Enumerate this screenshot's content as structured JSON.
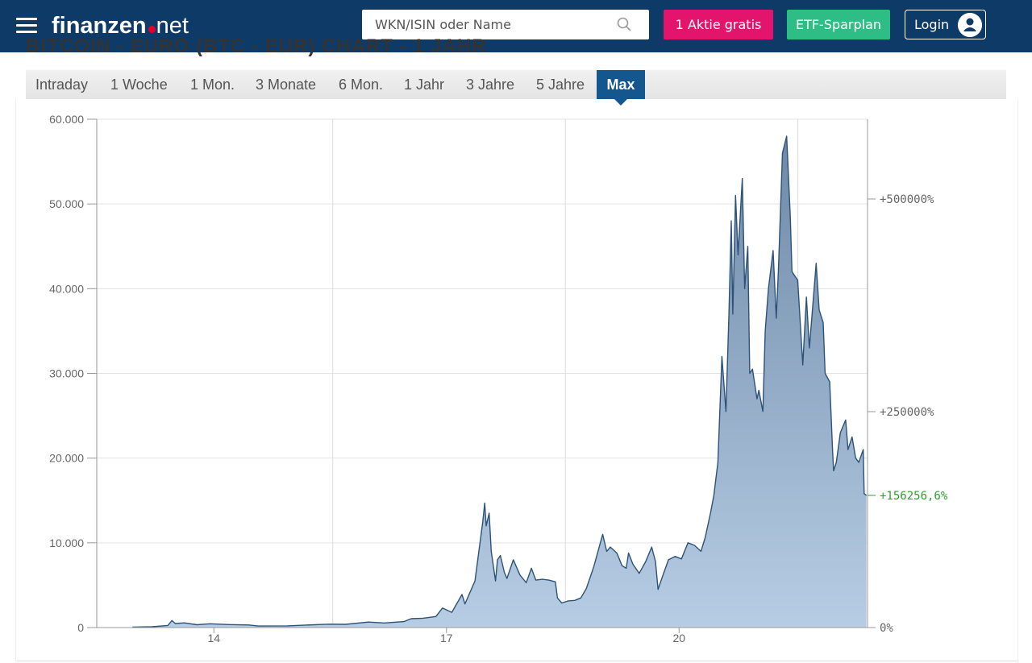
{
  "header": {
    "logo_brand": "finanzen",
    "logo_tld": "net",
    "search_placeholder": "WKN/ISIN oder Name",
    "btn_free_share": "1 Aktie gratis",
    "btn_etf": "ETF-Sparplan",
    "btn_login": "Login"
  },
  "heading": "BITCOIN - EURO (BTC - EUR) CHART - 1 JAHR",
  "tabs": [
    "Intraday",
    "1 Woche",
    "1 Mon.",
    "3 Monate",
    "6 Mon.",
    "1 Jahr",
    "3 Jahre",
    "5 Jahre",
    "Max"
  ],
  "active_tab": "Max",
  "colors": {
    "header_bg": "#0e3a67",
    "btn_pink": "#e2146b",
    "btn_green": "#2ebd85",
    "tab_active": "#14578f",
    "series_line": "#2d5278",
    "series_fill_top": "#6e89a8",
    "series_fill_bottom": "#b7cde4",
    "performance_label": "#2ca02c"
  },
  "chart_data": {
    "type": "area",
    "y_ticks": [
      "0",
      "10.000",
      "20.000",
      "30.000",
      "40.000",
      "50.000",
      "60.000"
    ],
    "y2_ticks": [
      "0%",
      "+250000%",
      "+500000%"
    ],
    "x_ticks": [
      "14",
      "17",
      "20"
    ],
    "ylim": [
      0,
      60000
    ],
    "y2_current_label": "+156256,6%",
    "grid": true,
    "series": [
      {
        "values": [
          [
            "2013-06-01",
            60
          ],
          [
            "2013-09-01",
            95
          ],
          [
            "2013-11-15",
            250
          ],
          [
            "2013-12-04",
            830
          ],
          [
            "2013-12-20",
            480
          ],
          [
            "2014-02-01",
            550
          ],
          [
            "2014-04-01",
            330
          ],
          [
            "2014-06-01",
            450
          ],
          [
            "2014-09-01",
            350
          ],
          [
            "2014-12-01",
            300
          ],
          [
            "2015-01-15",
            180
          ],
          [
            "2015-06-01",
            200
          ],
          [
            "2015-11-05",
            360
          ],
          [
            "2015-12-15",
            400
          ],
          [
            "2016-03-01",
            380
          ],
          [
            "2016-06-17",
            650
          ],
          [
            "2016-09-01",
            540
          ],
          [
            "2016-12-01",
            700
          ],
          [
            "2017-01-05",
            1050
          ],
          [
            "2017-03-01",
            1100
          ],
          [
            "2017-05-01",
            1300
          ],
          [
            "2017-06-01",
            2300
          ],
          [
            "2017-07-15",
            1800
          ],
          [
            "2017-09-01",
            3900
          ],
          [
            "2017-09-15",
            2800
          ],
          [
            "2017-11-01",
            5500
          ],
          [
            "2017-12-08",
            12500
          ],
          [
            "2017-12-17",
            14700
          ],
          [
            "2017-12-24",
            12000
          ],
          [
            "2018-01-07",
            13500
          ],
          [
            "2018-01-17",
            9000
          ],
          [
            "2018-02-06",
            5500
          ],
          [
            "2018-02-15",
            8000
          ],
          [
            "2018-03-01",
            8500
          ],
          [
            "2018-03-20",
            6500
          ],
          [
            "2018-04-01",
            5800
          ],
          [
            "2018-05-01",
            8000
          ],
          [
            "2018-06-01",
            6200
          ],
          [
            "2018-07-01",
            5300
          ],
          [
            "2018-07-25",
            7000
          ],
          [
            "2018-08-15",
            5600
          ],
          [
            "2018-09-15",
            5700
          ],
          [
            "2018-10-15",
            5600
          ],
          [
            "2018-11-15",
            5400
          ],
          [
            "2018-11-25",
            3500
          ],
          [
            "2018-12-15",
            2900
          ],
          [
            "2019-01-15",
            3150
          ],
          [
            "2019-02-15",
            3200
          ],
          [
            "2019-03-15",
            3500
          ],
          [
            "2019-04-10",
            4600
          ],
          [
            "2019-05-15",
            7200
          ],
          [
            "2019-06-26",
            11000
          ],
          [
            "2019-07-15",
            9000
          ],
          [
            "2019-08-01",
            9500
          ],
          [
            "2019-09-01",
            8800
          ],
          [
            "2019-09-25",
            7300
          ],
          [
            "2019-10-15",
            7000
          ],
          [
            "2019-10-26",
            8800
          ],
          [
            "2019-11-15",
            7500
          ],
          [
            "2019-12-15",
            6400
          ],
          [
            "2020-01-15",
            7800
          ],
          [
            "2020-02-12",
            9500
          ],
          [
            "2020-03-01",
            7800
          ],
          [
            "2020-03-13",
            4500
          ],
          [
            "2020-04-01",
            5900
          ],
          [
            "2020-05-01",
            8000
          ],
          [
            "2020-06-01",
            8400
          ],
          [
            "2020-07-01",
            8100
          ],
          [
            "2020-08-01",
            10000
          ],
          [
            "2020-09-01",
            9700
          ],
          [
            "2020-10-01",
            9000
          ],
          [
            "2020-10-21",
            10600
          ],
          [
            "2020-11-15",
            13500
          ],
          [
            "2020-12-01",
            15600
          ],
          [
            "2020-12-20",
            19500
          ],
          [
            "2021-01-08",
            32000
          ],
          [
            "2021-01-27",
            25500
          ],
          [
            "2021-02-10",
            37000
          ],
          [
            "2021-02-21",
            48000
          ],
          [
            "2021-02-28",
            37000
          ],
          [
            "2021-03-13",
            51000
          ],
          [
            "2021-03-25",
            44000
          ],
          [
            "2021-04-14",
            53000
          ],
          [
            "2021-04-25",
            40000
          ],
          [
            "2021-05-10",
            45000
          ],
          [
            "2021-05-19",
            30000
          ],
          [
            "2021-06-01",
            30500
          ],
          [
            "2021-06-22",
            27000
          ],
          [
            "2021-07-01",
            28000
          ],
          [
            "2021-07-20",
            25500
          ],
          [
            "2021-07-31",
            35000
          ],
          [
            "2021-08-15",
            40000
          ],
          [
            "2021-09-06",
            44500
          ],
          [
            "2021-09-21",
            36500
          ],
          [
            "2021-10-01",
            42000
          ],
          [
            "2021-10-20",
            56000
          ],
          [
            "2021-11-09",
            58000
          ],
          [
            "2021-11-26",
            48500
          ],
          [
            "2021-12-04",
            42000
          ],
          [
            "2021-12-31",
            41000
          ],
          [
            "2022-01-24",
            31000
          ],
          [
            "2022-02-10",
            39000
          ],
          [
            "2022-02-24",
            33000
          ],
          [
            "2022-03-28",
            43000
          ],
          [
            "2022-04-11",
            37500
          ],
          [
            "2022-04-30",
            36000
          ],
          [
            "2022-05-09",
            30000
          ],
          [
            "2022-05-31",
            29000
          ],
          [
            "2022-06-13",
            21000
          ],
          [
            "2022-06-18",
            18500
          ],
          [
            "2022-07-01",
            19500
          ],
          [
            "2022-07-20",
            23000
          ],
          [
            "2022-08-14",
            24500
          ],
          [
            "2022-08-25",
            21000
          ],
          [
            "2022-09-13",
            22500
          ],
          [
            "2022-09-30",
            20000
          ],
          [
            "2022-10-15",
            19500
          ],
          [
            "2022-11-05",
            21000
          ],
          [
            "2022-11-09",
            15800
          ],
          [
            "2022-11-20",
            15600
          ]
        ]
      }
    ]
  }
}
